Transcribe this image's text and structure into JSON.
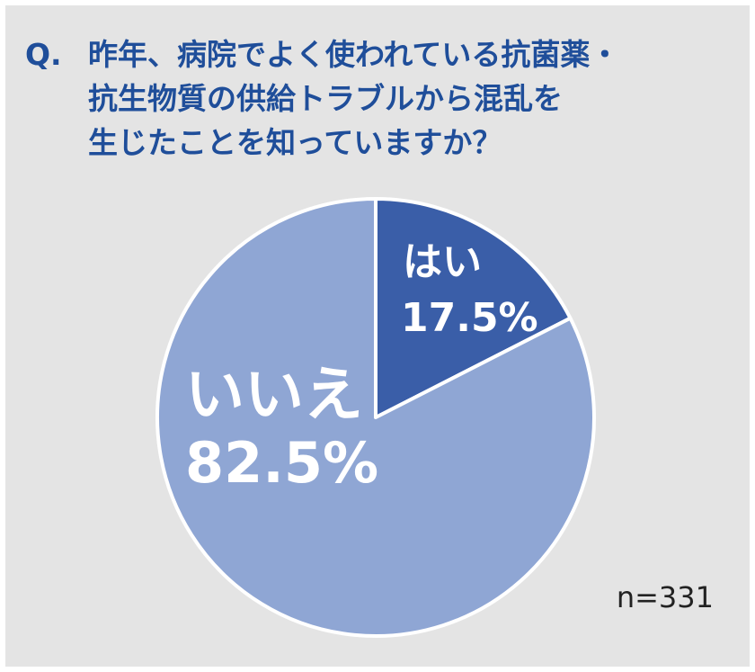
{
  "question": {
    "mark": "Q.",
    "lines": [
      "昨年、病院でよく使われている抗菌薬・",
      "抗生物質の供給トラブルから混乱を",
      "生じたことを知っていますか？"
    ]
  },
  "sample_size": "n=331",
  "colors": {
    "yes": "#3a5ea8",
    "no": "#8fa6d4",
    "background": "#e4e4e4",
    "title": "#1f4e9a"
  },
  "chart_data": {
    "type": "pie",
    "slices": [
      {
        "label": "はい",
        "value": 17.5,
        "display": "17.5%",
        "color": "#3a5ea8"
      },
      {
        "label": "いいえ",
        "value": 82.5,
        "display": "82.5%",
        "color": "#8fa6d4"
      }
    ],
    "start_angle": "12 o'clock",
    "direction": "clockwise"
  }
}
